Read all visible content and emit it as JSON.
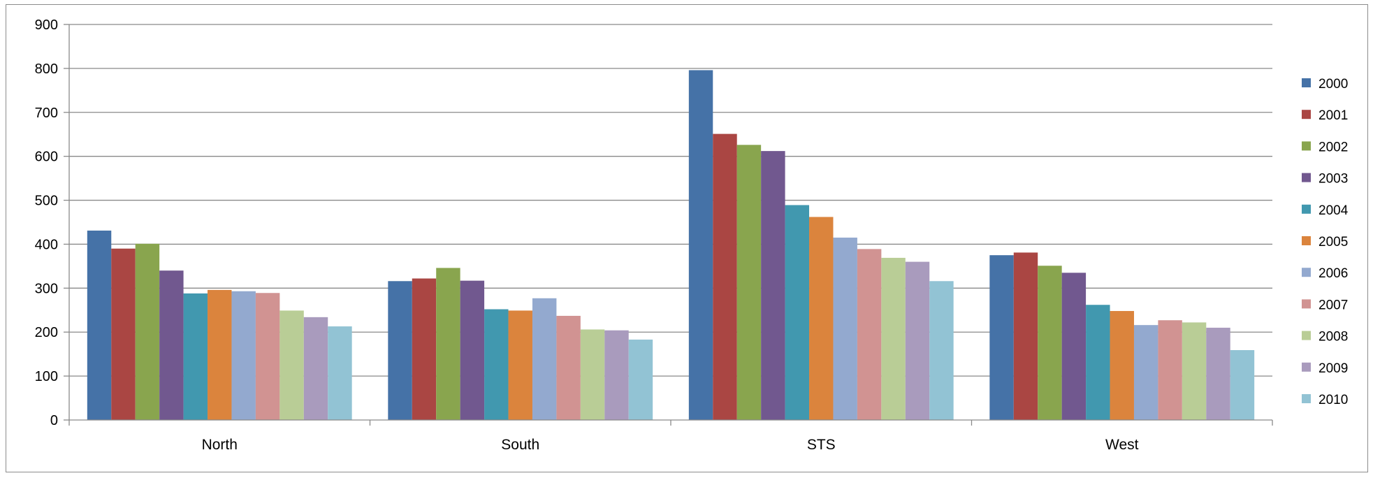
{
  "chart_data": {
    "type": "bar",
    "title": "",
    "xlabel": "",
    "ylabel": "",
    "categories": [
      "North",
      "South",
      "STS",
      "West"
    ],
    "ylim": [
      0,
      900
    ],
    "yticks": [
      0,
      100,
      200,
      300,
      400,
      500,
      600,
      700,
      800,
      900
    ],
    "grid": true,
    "legend_position": "right",
    "series": [
      {
        "name": "2000",
        "color": "#4572A7",
        "values": [
          431,
          316,
          796,
          375
        ]
      },
      {
        "name": "2001",
        "color": "#AA4643",
        "values": [
          390,
          322,
          651,
          381
        ]
      },
      {
        "name": "2002",
        "color": "#89A54E",
        "values": [
          401,
          346,
          626,
          351
        ]
      },
      {
        "name": "2003",
        "color": "#71588F",
        "values": [
          340,
          317,
          612,
          335
        ]
      },
      {
        "name": "2004",
        "color": "#4198AF",
        "values": [
          288,
          252,
          489,
          262
        ]
      },
      {
        "name": "2005",
        "color": "#DB843D",
        "values": [
          296,
          249,
          462,
          248
        ]
      },
      {
        "name": "2006",
        "color": "#93A9CF",
        "values": [
          293,
          277,
          415,
          216
        ]
      },
      {
        "name": "2007",
        "color": "#D19392",
        "values": [
          289,
          237,
          389,
          227
        ]
      },
      {
        "name": "2008",
        "color": "#B9CD96",
        "values": [
          249,
          206,
          369,
          222
        ]
      },
      {
        "name": "2009",
        "color": "#A99BBD",
        "values": [
          234,
          204,
          360,
          210
        ]
      },
      {
        "name": "2010",
        "color": "#92C3D4",
        "values": [
          213,
          183,
          316,
          159
        ]
      }
    ]
  }
}
